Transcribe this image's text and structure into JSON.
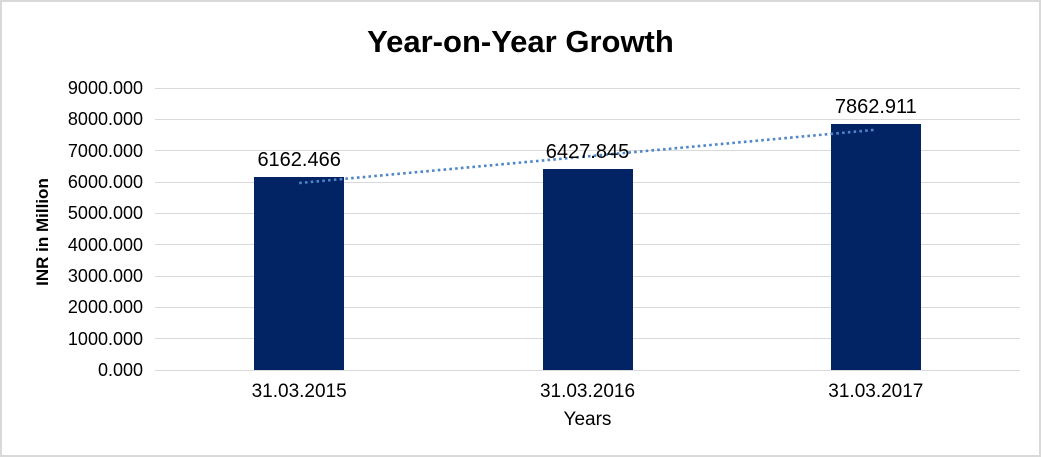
{
  "window": {
    "background_color": "#ffffff",
    "border_color": "#d9d9d9"
  },
  "chart_data": {
    "type": "bar",
    "title": "Year-on-Year Growth",
    "categories": [
      "31.03.2015",
      "31.03.2016",
      "31.03.2017"
    ],
    "values": [
      6162.466,
      6427.845,
      7862.911
    ],
    "data_labels": [
      "6162.466",
      "6427.845",
      "7862.911"
    ],
    "xlabel": "Years",
    "ylabel": "INR in Million",
    "ylim": [
      0,
      9000
    ],
    "ytick_step": 1000,
    "ytick_labels": [
      "0.000",
      "1000.000",
      "2000.000",
      "3000.000",
      "4000.000",
      "5000.000",
      "6000.000",
      "7000.000",
      "8000.000",
      "9000.000"
    ],
    "grid": true,
    "legend": "none",
    "bar_color": "#022364",
    "gridline_color": "#d9d9d9",
    "text_color": "#000000",
    "trendline": {
      "type": "linear",
      "style": "dotted",
      "color": "#4e86c8"
    }
  }
}
